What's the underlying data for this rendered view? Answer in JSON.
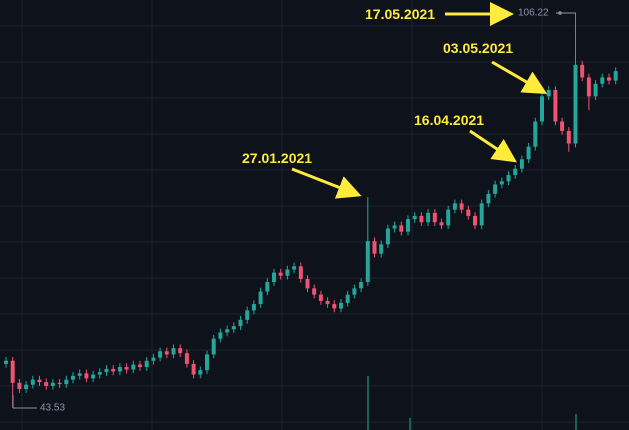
{
  "chart_data": {
    "type": "candlestick",
    "up_color": "#26a69a",
    "down_color": "#ef5370",
    "ylim": [
      40,
      108.3
    ],
    "annotations": [
      "27.01.2021",
      "16.04.2021",
      "03.05.2021",
      "17.05.2021"
    ],
    "open": [
      50.5,
      51.0,
      47.5,
      46.5,
      47.2,
      48.0,
      47.6,
      47.0,
      47.5,
      47.3,
      48.0,
      48.6,
      49.0,
      48.2,
      48.8,
      49.2,
      49.7,
      49.3,
      50.0,
      49.6,
      50.4,
      50.0,
      51.0,
      51.5,
      52.5,
      52.0,
      53.0,
      52.2,
      50.5,
      48.8,
      49.5,
      52.0,
      54.5,
      55.5,
      56.0,
      56.5,
      57.5,
      59.0,
      60.0,
      62.0,
      63.5,
      65.0,
      64.5,
      65.5,
      66.0,
      64.0,
      62.5,
      61.5,
      60.5,
      60.0,
      59.3,
      60.2,
      61.5,
      62.5,
      63.5,
      70.0,
      68.0,
      69.5,
      72.0,
      72.5,
      71.5,
      73.5,
      74.0,
      73.0,
      74.5,
      73.0,
      72.5,
      75.0,
      76.0,
      75.0,
      74.0,
      72.5,
      76.0,
      77.5,
      79.0,
      79.5,
      80.5,
      81.5,
      83.0,
      85.0,
      89.0,
      93.0,
      94.0,
      89.0,
      87.5,
      85.5,
      98.0,
      96.0,
      93.0,
      95.0,
      96.0,
      95.5
    ],
    "high": [
      51.6,
      51.6,
      48.1,
      47.8,
      48.6,
      48.6,
      48.2,
      48.1,
      48.1,
      48.6,
      49.2,
      49.6,
      49.6,
      49.4,
      49.8,
      50.3,
      50.3,
      50.6,
      50.6,
      51.0,
      51.0,
      51.6,
      52.1,
      53.1,
      53.1,
      53.6,
      53.6,
      52.8,
      51.1,
      50.1,
      52.6,
      55.1,
      56.1,
      56.6,
      57.1,
      58.1,
      59.6,
      60.6,
      62.6,
      64.1,
      65.6,
      65.6,
      66.1,
      66.6,
      66.6,
      64.6,
      63.1,
      62.1,
      61.1,
      60.6,
      60.8,
      62.1,
      63.1,
      64.1,
      77.0,
      70.6,
      70.1,
      72.6,
      73.1,
      73.1,
      74.1,
      74.6,
      74.6,
      75.1,
      75.1,
      73.6,
      75.6,
      76.6,
      76.6,
      75.6,
      74.6,
      76.6,
      78.1,
      79.6,
      80.1,
      81.1,
      82.1,
      83.6,
      85.6,
      89.6,
      93.6,
      94.6,
      94.6,
      89.6,
      88.1,
      106.22,
      98.6,
      96.6,
      95.6,
      96.6,
      96.6,
      97.6
    ],
    "low": [
      49.9,
      43.53,
      45.9,
      45.9,
      46.6,
      47.0,
      46.4,
      46.4,
      46.7,
      46.7,
      47.4,
      48.0,
      47.6,
      47.6,
      48.2,
      48.6,
      48.7,
      48.7,
      49.0,
      49.0,
      49.4,
      49.4,
      50.4,
      50.9,
      51.4,
      51.4,
      51.6,
      49.9,
      48.2,
      48.2,
      48.9,
      51.4,
      53.9,
      54.9,
      55.4,
      55.9,
      56.9,
      58.4,
      59.4,
      61.4,
      62.9,
      63.9,
      63.9,
      64.9,
      63.4,
      61.9,
      60.9,
      59.9,
      59.4,
      58.7,
      58.7,
      59.6,
      60.9,
      61.9,
      62.9,
      67.4,
      67.4,
      68.9,
      71.4,
      70.9,
      70.9,
      72.9,
      72.4,
      72.4,
      72.4,
      71.9,
      71.9,
      74.4,
      74.4,
      73.4,
      71.9,
      71.9,
      75.4,
      76.9,
      78.4,
      78.9,
      79.9,
      80.9,
      82.4,
      84.4,
      88.4,
      92.4,
      88.4,
      86.9,
      84.2,
      84.9,
      95.4,
      90.8,
      92.4,
      94.4,
      94.9,
      94.9
    ],
    "close": [
      51.0,
      47.5,
      46.5,
      47.2,
      48.0,
      47.6,
      47.0,
      47.5,
      47.3,
      48.0,
      48.6,
      49.0,
      48.2,
      48.8,
      49.2,
      49.7,
      49.3,
      50.0,
      49.6,
      50.4,
      50.0,
      51.0,
      51.5,
      52.5,
      52.0,
      53.0,
      52.2,
      50.5,
      48.8,
      49.5,
      52.0,
      54.5,
      55.5,
      56.0,
      56.5,
      57.5,
      59.0,
      60.0,
      62.0,
      63.5,
      65.0,
      64.5,
      65.5,
      66.0,
      64.0,
      62.5,
      61.5,
      60.5,
      60.0,
      59.3,
      60.2,
      61.5,
      62.5,
      63.5,
      70.0,
      68.0,
      69.5,
      72.0,
      72.5,
      71.5,
      73.5,
      74.0,
      73.0,
      74.5,
      73.0,
      72.5,
      75.0,
      76.0,
      75.0,
      74.0,
      72.5,
      76.0,
      77.5,
      79.0,
      79.5,
      80.5,
      81.5,
      83.0,
      85.0,
      89.0,
      93.0,
      94.0,
      89.0,
      87.5,
      85.5,
      98.0,
      96.0,
      93.0,
      95.0,
      96.0,
      95.5,
      97.0
    ]
  }
}
